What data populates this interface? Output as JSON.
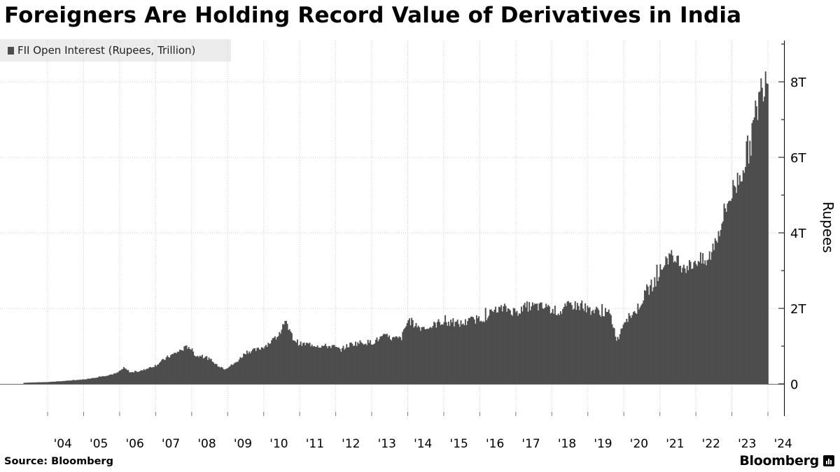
{
  "title": "Foreigners Are Holding Record Value of Derivatives in India",
  "source": "Source: Bloomberg",
  "brand": "Bloomberg",
  "colors": {
    "bars": "#4d4d4d",
    "grid": "#cfcfcf",
    "axis": "#000000",
    "legend_bg": "#ececec"
  },
  "chart_data": {
    "type": "area",
    "title": "Foreigners Are Holding Record Value of Derivatives in India",
    "xlabel": "",
    "ylabel": "Rupees",
    "ylim": [
      -0.85,
      9.05
    ],
    "xlim": [
      2003.33,
      2024.4
    ],
    "y_ticks": [
      0,
      2,
      4,
      6,
      8
    ],
    "y_tick_labels": [
      "0",
      "2T",
      "4T",
      "6T",
      "8T"
    ],
    "x_tick_labels": [
      "'04",
      "'05",
      "'06",
      "'07",
      "'08",
      "'09",
      "'10",
      "'11",
      "'12",
      "'13",
      "'14",
      "'15",
      "'16",
      "'17",
      "'18",
      "'19",
      "'20",
      "'21",
      "'22",
      "'23",
      "'24"
    ],
    "x_tick_years": [
      2004,
      2005,
      2006,
      2007,
      2008,
      2009,
      2010,
      2011,
      2012,
      2013,
      2014,
      2015,
      2016,
      2017,
      2018,
      2019,
      2020,
      2021,
      2022,
      2023,
      2024
    ],
    "grid": true,
    "legend_position": "top-left",
    "series": [
      {
        "name": "FII Open Interest (Rupees, Trillion)",
        "x": [
          2003.33,
          2004.0,
          2004.5,
          2005.0,
          2005.5,
          2005.9,
          2006.1,
          2006.3,
          2006.6,
          2007.0,
          2007.3,
          2007.6,
          2007.9,
          2008.1,
          2008.4,
          2008.6,
          2008.9,
          2009.2,
          2009.5,
          2009.8,
          2010.0,
          2010.3,
          2010.6,
          2010.8,
          2011.0,
          2011.3,
          2011.6,
          2011.9,
          2012.1,
          2012.4,
          2012.7,
          2013.0,
          2013.3,
          2013.6,
          2013.8,
          2014.0,
          2014.3,
          2014.6,
          2014.9,
          2015.2,
          2015.5,
          2015.8,
          2016.1,
          2016.4,
          2016.7,
          2017.0,
          2017.3,
          2017.6,
          2017.9,
          2018.2,
          2018.5,
          2018.8,
          2019.1,
          2019.4,
          2019.6,
          2019.8,
          2020.0,
          2020.3,
          2020.6,
          2020.9,
          2021.2,
          2021.5,
          2021.8,
          2022.0,
          2022.3,
          2022.6,
          2022.9,
          2023.2,
          2023.5,
          2023.7,
          2023.9,
          2024.0
        ],
        "values": [
          0.03,
          0.05,
          0.08,
          0.12,
          0.2,
          0.28,
          0.42,
          0.3,
          0.35,
          0.5,
          0.7,
          0.85,
          1.0,
          0.75,
          0.7,
          0.55,
          0.4,
          0.55,
          0.85,
          0.9,
          1.0,
          1.2,
          1.6,
          1.2,
          1.05,
          1.05,
          1.0,
          1.0,
          0.9,
          1.05,
          1.1,
          1.1,
          1.25,
          1.2,
          1.2,
          1.7,
          1.5,
          1.5,
          1.65,
          1.6,
          1.6,
          1.7,
          1.75,
          1.95,
          2.0,
          1.9,
          2.05,
          2.05,
          2.0,
          1.9,
          2.1,
          2.05,
          1.95,
          1.9,
          1.85,
          1.15,
          1.7,
          1.9,
          2.4,
          2.8,
          3.4,
          3.2,
          3.1,
          3.3,
          3.2,
          4.0,
          4.9,
          5.5,
          6.4,
          7.4,
          8.2,
          8.4
        ]
      }
    ]
  }
}
